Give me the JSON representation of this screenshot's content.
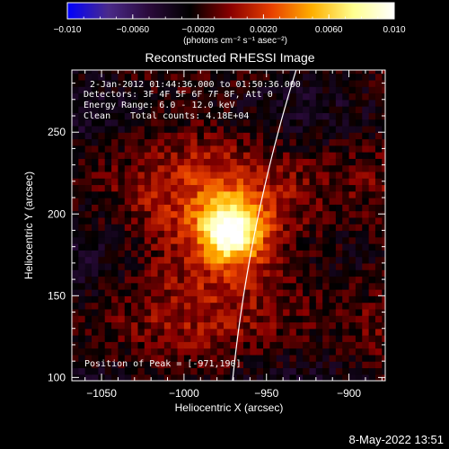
{
  "chart_data": {
    "type": "heatmap",
    "title": "Reconstructed RHESSI Image",
    "xlabel": "Heliocentric X (arcsec)",
    "ylabel": "Heliocentric Y (arcsec)",
    "xlim": [
      -1068,
      -878
    ],
    "ylim": [
      98,
      288
    ],
    "x_ticks": [
      -1050,
      -1000,
      -950,
      -900
    ],
    "x_tick_labels": [
      "−1050",
      "−1000",
      "−950",
      "−900"
    ],
    "y_ticks": [
      100,
      150,
      200,
      250
    ],
    "y_tick_labels": [
      "100",
      "150",
      "200",
      "250"
    ],
    "colorbar": {
      "range": [
        -0.01,
        0.01
      ],
      "ticks": [
        -0.01,
        -0.006,
        -0.002,
        0.002,
        0.006,
        0.01
      ],
      "tick_labels": [
        "−0.010",
        "−0.0060",
        "−0.0020",
        "0.0020",
        "0.0060",
        "0.010"
      ],
      "unit_label": "(photons cm⁻² s⁻¹ asec⁻²)",
      "colormap": [
        "#0000ff",
        "#4a2a8a",
        "#2a0a3a",
        "#000000",
        "#8a0000",
        "#e84000",
        "#ffb000",
        "#ffff90",
        "#ffffff"
      ]
    },
    "annotations": {
      "time_range": "2-Jan-2012 01:44:36.000 to 01:50:36.000",
      "detectors": "Detectors: 3F 4F 5F 6F 7F 8F, Att 0",
      "energy": "Energy Range: 6.0 - 12.0 keV",
      "clean": "Clean",
      "counts": "Total counts: 4.18E+04",
      "peak": "Position of Peak = [-971,190]"
    },
    "peak": {
      "x": -971,
      "y": 190
    },
    "source_sigma": 28,
    "limb": {
      "center": [
        0,
        0
      ],
      "radius": 975.5
    },
    "footer": "8-May-2022 13:51"
  }
}
